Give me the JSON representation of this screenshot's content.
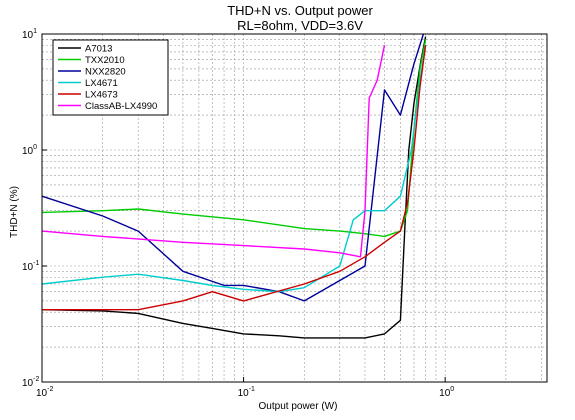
{
  "chart_data": {
    "type": "line",
    "title_lines": [
      "THD+N vs. Output power",
      "RL=8ohm, VDD=3.6V"
    ],
    "xlabel": "Output power (W)",
    "ylabel": "THD+N (%)",
    "xscale": "log",
    "yscale": "log",
    "xlim": [
      0.01,
      3.2
    ],
    "ylim": [
      0.01,
      10
    ],
    "grid": true,
    "legend_position": "top-left",
    "x_ticks": [
      {
        "value": 0.01,
        "base": "10",
        "exp": "-2"
      },
      {
        "value": 0.1,
        "base": "10",
        "exp": "-1"
      },
      {
        "value": 1,
        "base": "10",
        "exp": "0"
      }
    ],
    "y_ticks": [
      {
        "value": 0.01,
        "base": "10",
        "exp": "-2"
      },
      {
        "value": 0.1,
        "base": "10",
        "exp": "-1"
      },
      {
        "value": 1,
        "base": "10",
        "exp": "0"
      },
      {
        "value": 10,
        "base": "10",
        "exp": "1"
      }
    ],
    "series": [
      {
        "name": "A7013",
        "color": "#000000",
        "points": [
          [
            0.01,
            0.042
          ],
          [
            0.02,
            0.041
          ],
          [
            0.03,
            0.039
          ],
          [
            0.05,
            0.032
          ],
          [
            0.07,
            0.029
          ],
          [
            0.1,
            0.026
          ],
          [
            0.15,
            0.025
          ],
          [
            0.2,
            0.024
          ],
          [
            0.3,
            0.024
          ],
          [
            0.4,
            0.024
          ],
          [
            0.5,
            0.026
          ],
          [
            0.6,
            0.034
          ],
          [
            0.63,
            0.2
          ],
          [
            0.66,
            1.0
          ],
          [
            0.7,
            2.5
          ],
          [
            0.76,
            6.0
          ],
          [
            0.8,
            9.5
          ]
        ]
      },
      {
        "name": "TXX2010",
        "color": "#00cc00",
        "points": [
          [
            0.01,
            0.29
          ],
          [
            0.02,
            0.3
          ],
          [
            0.03,
            0.31
          ],
          [
            0.05,
            0.28
          ],
          [
            0.1,
            0.25
          ],
          [
            0.2,
            0.21
          ],
          [
            0.3,
            0.2
          ],
          [
            0.4,
            0.19
          ],
          [
            0.5,
            0.18
          ],
          [
            0.6,
            0.2
          ],
          [
            0.65,
            0.3
          ],
          [
            0.68,
            0.8
          ],
          [
            0.72,
            2.5
          ],
          [
            0.75,
            5.0
          ],
          [
            0.8,
            9.0
          ]
        ]
      },
      {
        "name": "NXX2820",
        "color": "#000099",
        "points": [
          [
            0.01,
            0.4
          ],
          [
            0.02,
            0.27
          ],
          [
            0.03,
            0.2
          ],
          [
            0.05,
            0.09
          ],
          [
            0.08,
            0.068
          ],
          [
            0.1,
            0.068
          ],
          [
            0.15,
            0.06
          ],
          [
            0.2,
            0.05
          ],
          [
            0.3,
            0.075
          ],
          [
            0.4,
            0.1
          ],
          [
            0.5,
            3.3
          ],
          [
            0.6,
            2.0
          ],
          [
            0.7,
            5.5
          ],
          [
            0.78,
            10.0
          ]
        ]
      },
      {
        "name": "LX4671",
        "color": "#00cccc",
        "points": [
          [
            0.01,
            0.07
          ],
          [
            0.02,
            0.08
          ],
          [
            0.03,
            0.085
          ],
          [
            0.05,
            0.075
          ],
          [
            0.07,
            0.068
          ],
          [
            0.1,
            0.063
          ],
          [
            0.15,
            0.06
          ],
          [
            0.2,
            0.065
          ],
          [
            0.3,
            0.1
          ],
          [
            0.35,
            0.25
          ],
          [
            0.4,
            0.3
          ],
          [
            0.5,
            0.3
          ],
          [
            0.6,
            0.4
          ],
          [
            0.68,
            1.0
          ],
          [
            0.75,
            4.0
          ],
          [
            0.8,
            8.0
          ]
        ]
      },
      {
        "name": "LX4673",
        "color": "#cc0000",
        "points": [
          [
            0.01,
            0.042
          ],
          [
            0.02,
            0.042
          ],
          [
            0.03,
            0.042
          ],
          [
            0.05,
            0.05
          ],
          [
            0.07,
            0.06
          ],
          [
            0.1,
            0.05
          ],
          [
            0.2,
            0.07
          ],
          [
            0.3,
            0.09
          ],
          [
            0.4,
            0.12
          ],
          [
            0.5,
            0.16
          ],
          [
            0.6,
            0.2
          ],
          [
            0.65,
            0.35
          ],
          [
            0.7,
            1.0
          ],
          [
            0.75,
            3.5
          ],
          [
            0.8,
            8.0
          ]
        ]
      },
      {
        "name": "ClassAB-LX4990",
        "color": "#ff00ff",
        "points": [
          [
            0.01,
            0.2
          ],
          [
            0.02,
            0.18
          ],
          [
            0.05,
            0.16
          ],
          [
            0.1,
            0.15
          ],
          [
            0.2,
            0.14
          ],
          [
            0.3,
            0.13
          ],
          [
            0.38,
            0.12
          ],
          [
            0.4,
            0.3
          ],
          [
            0.42,
            2.8
          ],
          [
            0.46,
            4.0
          ],
          [
            0.5,
            8.0
          ]
        ]
      }
    ]
  }
}
